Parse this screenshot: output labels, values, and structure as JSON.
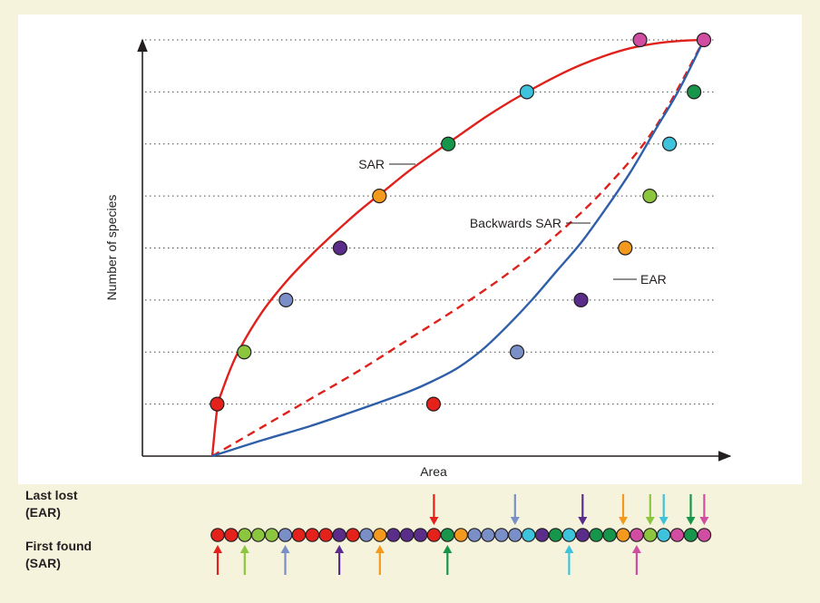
{
  "chart_data": {
    "type": "line",
    "title": "",
    "xlabel": "Area",
    "ylabel": "Number of species",
    "xlim": [
      0,
      100
    ],
    "ylim": [
      0,
      8
    ],
    "grid": true,
    "grid_style": "dotted horizontal at each species level",
    "levels": [
      1,
      2,
      3,
      4,
      5,
      6,
      7,
      8
    ],
    "series": [
      {
        "name": "SAR",
        "style": "solid",
        "color": "#e0201b",
        "x": [
          0,
          1,
          2,
          5,
          10,
          15,
          20,
          25,
          30,
          35,
          40,
          45,
          50,
          55,
          60,
          65,
          70,
          75,
          80,
          85,
          90,
          95,
          100
        ],
        "y": [
          0,
          0.9,
          1.25,
          1.95,
          2.75,
          3.35,
          3.85,
          4.3,
          4.72,
          5.1,
          5.48,
          5.82,
          6.15,
          6.48,
          6.78,
          7.05,
          7.3,
          7.52,
          7.7,
          7.84,
          7.93,
          7.98,
          8.0
        ]
      },
      {
        "name": "Backwards SAR",
        "style": "dashed",
        "color": "#e0201b",
        "x": [
          0,
          10,
          20,
          30,
          40,
          50,
          60,
          70,
          80,
          90,
          100
        ],
        "y": [
          0,
          0.55,
          1.1,
          1.65,
          2.25,
          2.85,
          3.5,
          4.25,
          5.15,
          6.3,
          8.0
        ]
      },
      {
        "name": "EAR",
        "style": "solid",
        "color": "#2f5fa8",
        "x": [
          0,
          10,
          20,
          30,
          40,
          45,
          50,
          55,
          60,
          65,
          70,
          75,
          80,
          85,
          90,
          95,
          100
        ],
        "y": [
          0,
          0.3,
          0.58,
          0.9,
          1.24,
          1.45,
          1.7,
          2.05,
          2.5,
          3.0,
          3.55,
          4.1,
          4.75,
          5.45,
          6.25,
          7.05,
          8.0
        ]
      }
    ],
    "sar_points": [
      {
        "x": 1.0,
        "y": 1,
        "species": "red"
      },
      {
        "x": 6.5,
        "y": 2,
        "species": "lime"
      },
      {
        "x": 15.0,
        "y": 3,
        "species": "slate"
      },
      {
        "x": 26.0,
        "y": 4,
        "species": "purple"
      },
      {
        "x": 34.0,
        "y": 5,
        "species": "orange"
      },
      {
        "x": 48.0,
        "y": 6,
        "species": "green"
      },
      {
        "x": 64.0,
        "y": 7,
        "species": "cyan"
      },
      {
        "x": 87.0,
        "y": 8,
        "species": "pink"
      }
    ],
    "ear_points": [
      {
        "x": 45.0,
        "y": 1,
        "species": "red"
      },
      {
        "x": 62.0,
        "y": 2,
        "species": "slate"
      },
      {
        "x": 75.0,
        "y": 3,
        "species": "purple"
      },
      {
        "x": 84.0,
        "y": 4,
        "species": "orange"
      },
      {
        "x": 89.0,
        "y": 5,
        "species": "lime"
      },
      {
        "x": 93.0,
        "y": 6,
        "species": "cyan"
      },
      {
        "x": 98.0,
        "y": 7,
        "species": "green"
      },
      {
        "x": 100.0,
        "y": 8,
        "species": "pink"
      }
    ],
    "annotations": {
      "sar_label": "SAR",
      "backwards_label": "Backwards SAR",
      "ear_label": "EAR"
    }
  },
  "legend_strip": {
    "last_lost_label_1": "Last lost",
    "last_lost_label_2": "(EAR)",
    "first_found_label_1": "First found",
    "first_found_label_2": "(SAR)",
    "individuals": [
      "red",
      "red",
      "lime",
      "lime",
      "lime",
      "slate",
      "red",
      "red",
      "red",
      "purple",
      "red",
      "slate",
      "orange",
      "purple",
      "purple",
      "purple",
      "red",
      "green",
      "orange",
      "slate",
      "slate",
      "slate",
      "slate",
      "cyan",
      "purple",
      "green",
      "cyan",
      "purple",
      "green",
      "green",
      "orange",
      "pink",
      "lime",
      "cyan",
      "pink",
      "green",
      "pink"
    ],
    "first_found_positions": [
      0,
      2,
      5,
      9,
      12,
      17,
      26,
      31
    ],
    "last_lost_positions": [
      16,
      22,
      27,
      30,
      32,
      33,
      35,
      36
    ]
  },
  "colors": {
    "background": "#f6f3dd",
    "plot_bg": "#ffffff",
    "sar_curve": "#e0201b",
    "ear_curve": "#2f5fa8",
    "axis": "#231f20",
    "red": "#e4211b",
    "lime": "#8cc63f",
    "slate": "#7a8fc8",
    "purple": "#5a2d8a",
    "orange": "#f39a1e",
    "green": "#16964a",
    "cyan": "#3ec3dc",
    "pink": "#d14da1"
  }
}
